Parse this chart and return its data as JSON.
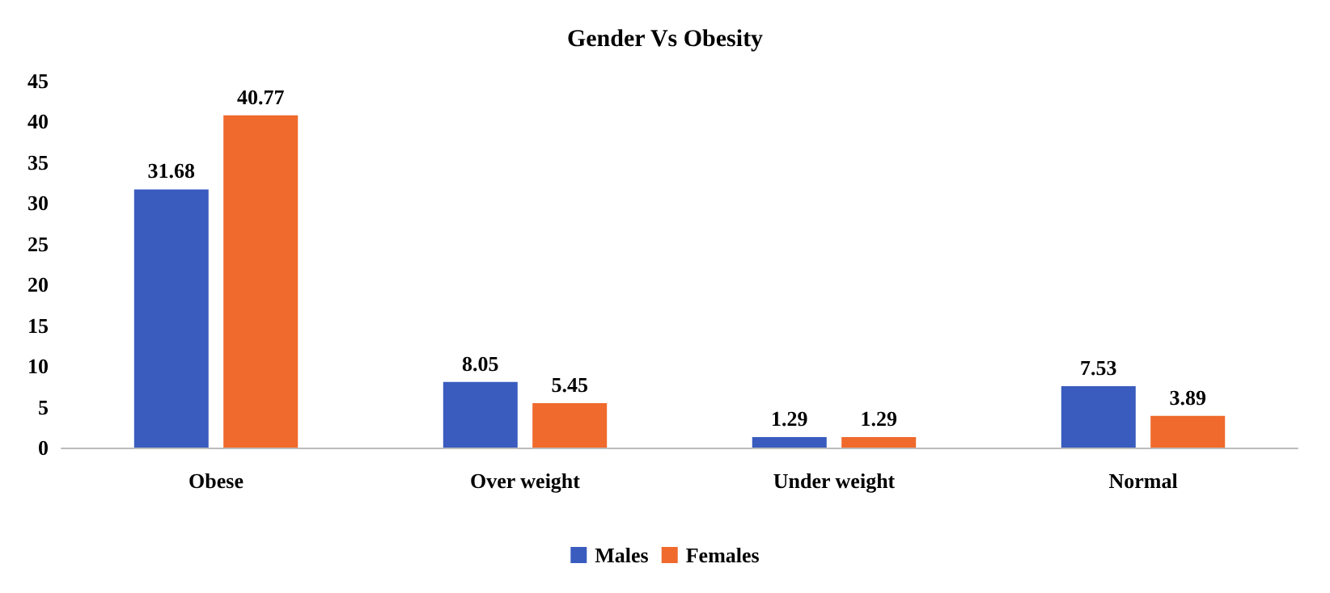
{
  "chart_data": {
    "type": "bar",
    "title": "Gender Vs Obesity",
    "categories": [
      "Obese",
      "Over weight",
      "Under weight",
      "Normal"
    ],
    "series": [
      {
        "name": "Males",
        "color": "#3a5cbf",
        "values": [
          31.68,
          8.05,
          1.29,
          7.53
        ]
      },
      {
        "name": "Females",
        "color": "#ef6a2c",
        "values": [
          40.77,
          5.45,
          1.29,
          3.89
        ]
      }
    ],
    "ylim": [
      0,
      45
    ],
    "yticks": [
      0,
      5,
      10,
      15,
      20,
      25,
      30,
      35,
      40,
      45
    ],
    "grid": false,
    "legend": "bottom",
    "data_labels": true
  }
}
